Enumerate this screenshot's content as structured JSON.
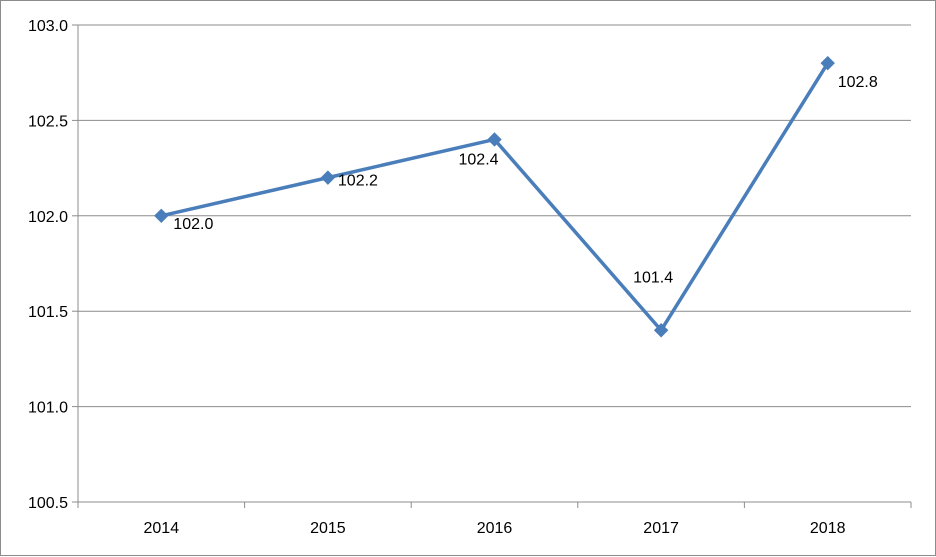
{
  "chart_data": {
    "type": "line",
    "categories": [
      "2014",
      "2015",
      "2016",
      "2017",
      "2018"
    ],
    "series": [
      {
        "values": [
          102.0,
          102.2,
          102.4,
          101.4,
          102.8
        ],
        "color": "#4a7ebb",
        "marker": "diamond"
      }
    ],
    "data_labels": [
      "102.0",
      "102.2",
      "102.4",
      "101.4",
      "102.8"
    ],
    "y_ticks": [
      "100.5",
      "101.0",
      "101.5",
      "102.0",
      "102.5",
      "103.0"
    ],
    "ylim": [
      100.5,
      103.0
    ],
    "y_grid": true,
    "legend": "none",
    "title": "",
    "xlabel": "",
    "ylabel": ""
  }
}
